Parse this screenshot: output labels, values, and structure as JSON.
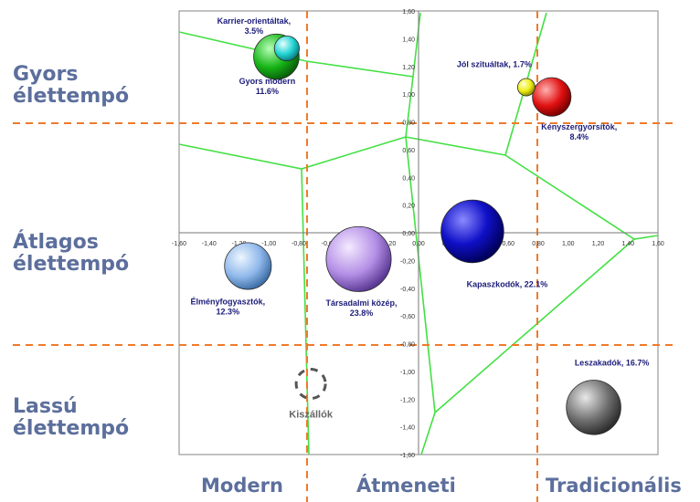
{
  "chart_data": {
    "type": "scatter",
    "xlim": [
      -1.6,
      1.6
    ],
    "ylim": [
      -1.6,
      1.6
    ],
    "x_ticks": [
      "-1,60",
      "-1,40",
      "-1,20",
      "-1,00",
      "-0,80",
      "-0,60",
      "-0,40",
      "-0,20",
      "0,00",
      "0,20",
      "0,40",
      "0,60",
      "0,80",
      "1,00",
      "1,20",
      "1,40",
      "1,60"
    ],
    "y_ticks": [
      "1,60",
      "1,40",
      "1,20",
      "1,00",
      "0,80",
      "0,60",
      "0,40",
      "0,20",
      "0,00",
      "-0,20",
      "-0,40",
      "-0,60",
      "-0,80",
      "-1,00",
      "-1,20",
      "-1,40",
      "-1,60"
    ],
    "grid": false,
    "row_labels": [
      {
        "line1": "Gyors",
        "line2": "élettempó"
      },
      {
        "line1": "Átlagos",
        "line2": "élettempó"
      },
      {
        "line1": "Lassú",
        "line2": "élettempó"
      }
    ],
    "column_labels": [
      "Modern",
      "Átmeneti",
      "Tradicionális"
    ],
    "bubbles": [
      {
        "name": "Karrier-orientáltak,",
        "share_label": "3.5%",
        "share": 3.5,
        "x": -0.88,
        "y": 1.33,
        "color": "#22d3d3"
      },
      {
        "name": "Gyors modern",
        "share_label": "11.6%",
        "share": 11.6,
        "x": -0.95,
        "y": 1.27,
        "color": "#17b517"
      },
      {
        "name": "Jól szituáltak, 1.7%",
        "share_label": "",
        "share": 1.7,
        "x": 0.72,
        "y": 1.05,
        "color": "#ecec10"
      },
      {
        "name": "Kényszergyorsítók,",
        "share_label": "8.4%",
        "share": 8.4,
        "x": 0.89,
        "y": 0.98,
        "color": "#e01010"
      },
      {
        "name": "Élményfogyasztók,",
        "share_label": "12.3%",
        "share": 12.3,
        "x": -1.14,
        "y": -0.24,
        "color": "#8fb8ea"
      },
      {
        "name": "Társadalmi közép,",
        "share_label": "23.8%",
        "share": 23.8,
        "x": -0.4,
        "y": -0.19,
        "color": "#b48fe6"
      },
      {
        "name": "Kapaszkodók, 22.1%",
        "share_label": "",
        "share": 22.1,
        "x": 0.36,
        "y": 0.01,
        "color": "#1010c8"
      },
      {
        "name": "Leszakadók, 16.7%",
        "share_label": "",
        "share": 16.7,
        "x": 1.17,
        "y": -1.26,
        "color": "#707070"
      }
    ],
    "ghost_bubble": {
      "name": "Kiszállók",
      "x": -0.72,
      "y": -1.09
    }
  }
}
